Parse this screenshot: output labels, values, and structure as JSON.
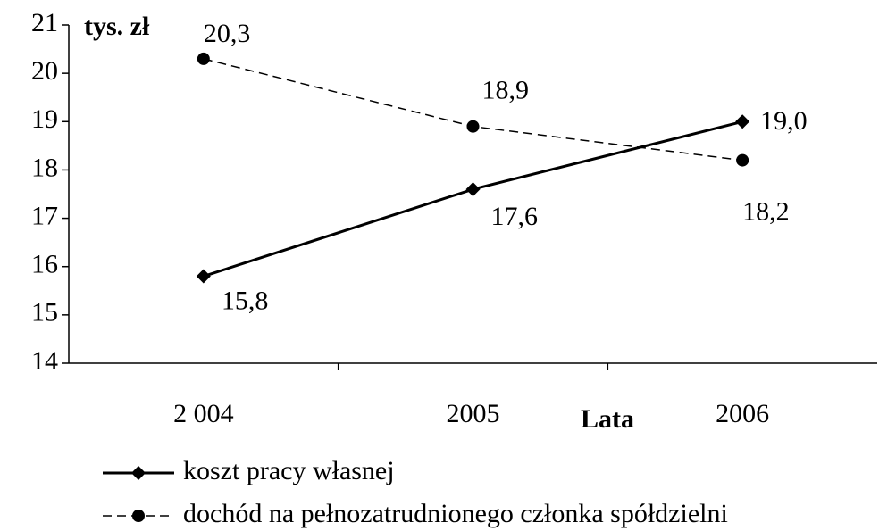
{
  "chart_data": {
    "type": "line",
    "ylabel": "tys. zł",
    "xlabel": "Lata",
    "categories": [
      "2 004",
      "2005",
      "2006"
    ],
    "series": [
      {
        "name": "koszt pracy własnej",
        "color": "#000000",
        "line_style": "solid",
        "marker": "diamond",
        "values": [
          15.8,
          17.6,
          19.0
        ],
        "value_labels": [
          "15,8",
          "17,6",
          "19,0"
        ]
      },
      {
        "name": "dochód na pełnozatrudnionego członka spółdzielni",
        "color": "#000000",
        "line_style": "dashed",
        "marker": "circle",
        "values": [
          20.3,
          18.9,
          18.2
        ],
        "value_labels": [
          "20,3",
          "18,9",
          "18,2"
        ]
      }
    ],
    "ylim": [
      14,
      21
    ],
    "yticks": [
      14,
      15,
      16,
      17,
      18,
      19,
      20,
      21
    ],
    "grid": false,
    "legend": "bottom"
  }
}
